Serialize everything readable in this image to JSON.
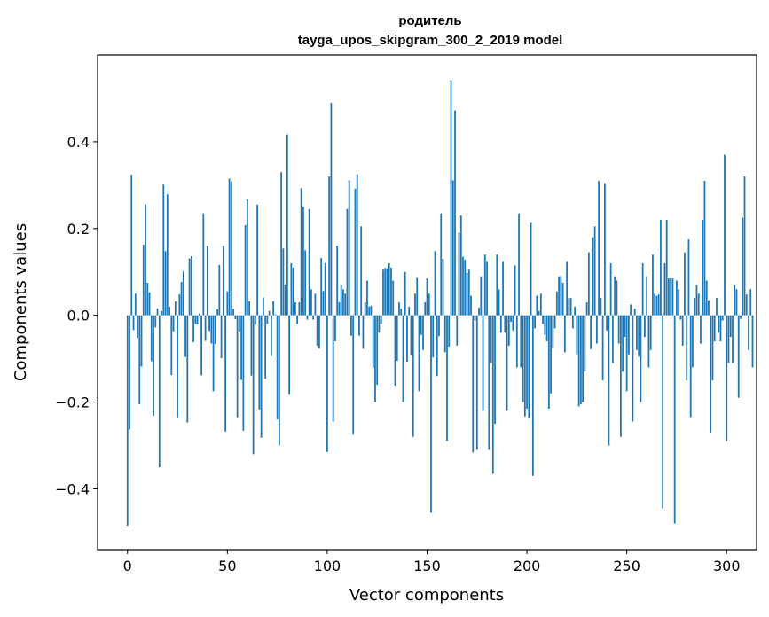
{
  "chart_data": {
    "type": "bar",
    "title_lines": [
      "родитель",
      "tayga_upos_skipgram_300_2_2019 model"
    ],
    "xlabel": "Vector components",
    "ylabel": "Components values",
    "xlim": [
      -15,
      315
    ],
    "ylim": [
      -0.54,
      0.6
    ],
    "xticks": [
      0,
      50,
      100,
      150,
      200,
      250,
      300
    ],
    "xtick_labels": [
      "0",
      "50",
      "100",
      "150",
      "200",
      "250",
      "300"
    ],
    "yticks": [
      -0.4,
      -0.2,
      0.0,
      0.2,
      0.4
    ],
    "ytick_labels": [
      "−0.4",
      "−0.2",
      "0.0",
      "0.2",
      "0.4"
    ],
    "grid": false,
    "bar_color": "#1f77b4",
    "values": [
      -0.485,
      -0.263,
      0.324,
      -0.034,
      0.05,
      -0.052,
      -0.205,
      -0.118,
      0.163,
      0.256,
      0.075,
      0.053,
      -0.106,
      -0.232,
      -0.028,
      0.016,
      -0.35,
      0.01,
      0.301,
      0.148,
      0.279,
      0.02,
      -0.138,
      -0.037,
      0.032,
      -0.237,
      0.048,
      0.077,
      0.102,
      -0.096,
      -0.247,
      0.131,
      0.136,
      -0.062,
      -0.02,
      -0.021,
      0.004,
      -0.138,
      0.235,
      -0.059,
      0.16,
      -0.036,
      -0.065,
      -0.175,
      -0.066,
      0.014,
      0.116,
      -0.099,
      0.16,
      -0.268,
      0.055,
      0.315,
      0.309,
      0.015,
      -0.009,
      -0.235,
      -0.038,
      -0.149,
      -0.266,
      0.208,
      0.267,
      0.032,
      -0.139,
      -0.32,
      -0.021,
      0.255,
      -0.217,
      -0.282,
      0.041,
      -0.146,
      -0.02,
      0.01,
      -0.094,
      0.033,
      0.002,
      -0.24,
      -0.3,
      0.33,
      0.154,
      0.071,
      0.417,
      -0.183,
      0.12,
      0.11,
      0.03,
      -0.02,
      0.03,
      0.293,
      0.25,
      0.15,
      -0.01,
      0.245,
      0.06,
      -0.01,
      0.05,
      -0.07,
      -0.076,
      0.132,
      0.056,
      0.12,
      -0.315,
      0.32,
      0.49,
      -0.245,
      -0.06,
      0.16,
      0.03,
      0.07,
      0.06,
      0.05,
      0.245,
      0.311,
      -0.047,
      -0.275,
      0.292,
      0.325,
      -0.047,
      0.205,
      -0.077,
      0.03,
      0.08,
      0.02,
      0.022,
      -0.12,
      -0.2,
      -0.16,
      -0.04,
      -0.02,
      0.105,
      0.109,
      0.108,
      0.12,
      0.11,
      0.08,
      -0.162,
      -0.105,
      0.03,
      0.015,
      -0.2,
      0.1,
      -0.107,
      0.02,
      -0.092,
      -0.28,
      0.05,
      0.086,
      -0.175,
      -0.045,
      -0.08,
      0.03,
      0.085,
      0.05,
      -0.455,
      -0.097,
      0.148,
      -0.14,
      -0.048,
      0.235,
      0.13,
      -0.085,
      -0.29,
      -0.072,
      0.542,
      0.311,
      0.472,
      -0.07,
      0.19,
      0.23,
      0.135,
      0.128,
      0.098,
      0.105,
      0.045,
      -0.316,
      -0.012,
      -0.31,
      0.018,
      0.09,
      -0.22,
      0.14,
      0.125,
      -0.31,
      -0.11,
      -0.365,
      -0.25,
      0.14,
      0.06,
      -0.04,
      0.125,
      -0.04,
      -0.22,
      -0.07,
      -0.015,
      -0.035,
      0.115,
      -0.12,
      0.235,
      -0.12,
      -0.2,
      -0.233,
      -0.215,
      -0.238,
      0.215,
      -0.37,
      -0.03,
      0.045,
      0.01,
      0.05,
      -0.02,
      -0.045,
      -0.06,
      -0.215,
      -0.18,
      -0.075,
      -0.03,
      0.055,
      0.09,
      0.09,
      0.075,
      -0.085,
      0.125,
      0.04,
      0.04,
      -0.03,
      0.02,
      -0.09,
      -0.21,
      -0.205,
      -0.2,
      -0.13,
      0.03,
      0.145,
      -0.078,
      0.18,
      0.205,
      -0.065,
      0.31,
      0.04,
      -0.15,
      0.305,
      -0.035,
      -0.3,
      0.12,
      -0.11,
      0.09,
      0.08,
      -0.065,
      -0.28,
      -0.13,
      -0.05,
      -0.175,
      -0.09,
      0.025,
      -0.245,
      0.015,
      -0.08,
      -0.095,
      -0.2,
      0.12,
      -0.05,
      0.09,
      -0.12,
      -0.08,
      0.14,
      0.05,
      0.045,
      0.048,
      0.22,
      -0.445,
      0.12,
      0.22,
      0.085,
      0.085,
      0.085,
      -0.48,
      0.08,
      0.06,
      -0.01,
      -0.07,
      0.145,
      -0.15,
      0.175,
      -0.235,
      -0.12,
      0.04,
      0.07,
      0.05,
      -0.065,
      0.22,
      0.31,
      0.08,
      0.035,
      -0.27,
      -0.15,
      -0.06,
      0.04,
      -0.04,
      -0.06,
      -0.012,
      0.37,
      -0.29,
      -0.11,
      -0.05,
      -0.11,
      0.07,
      0.06,
      -0.19,
      -0.008,
      0.225,
      0.32,
      0.048,
      -0.08,
      0.06,
      -0.12
    ],
    "value_precision_note": ""
  }
}
